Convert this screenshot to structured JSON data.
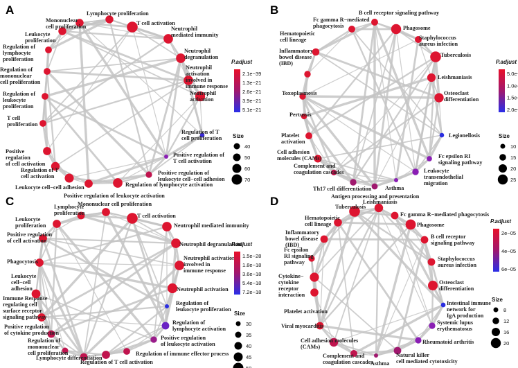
{
  "panels": [
    {
      "letter": "A",
      "legend_title": "P.adjust",
      "ticks": [
        "2.1e−39",
        "1.3e−21",
        "2.6e−21",
        "3.9e−21",
        "5.1e−21"
      ],
      "size_title": "Size",
      "size_ticks": [
        "40",
        "50",
        "60",
        "70"
      ],
      "nodes": [
        {
          "label": "Lymphocyte proliferation",
          "size": 55,
          "color": "#dd1530"
        },
        {
          "label": "T cell activation",
          "size": 68,
          "color": "#dd1530"
        },
        {
          "label": "Neutrophil mediated immunity",
          "size": 62,
          "color": "#dd1530"
        },
        {
          "label": "Neutrophil degranulation",
          "size": 62,
          "color": "#dd1530"
        },
        {
          "label": "Neutrophil activation involved in immune response",
          "size": 62,
          "color": "#dd1530"
        },
        {
          "label": "Neutrophil activation",
          "size": 64,
          "color": "#dd1530"
        },
        {
          "label": "Regulation of T cell proliferation",
          "size": 40,
          "color": "#3a2ad8"
        },
        {
          "label": "Positive regulation of T cell proliferation",
          "size": 38,
          "color": "#8a1eb4"
        },
        {
          "label": "Positive regulation of leukocyte cell−cell adhesion",
          "size": 48,
          "color": "#c0144e"
        },
        {
          "label": "Regulation of lymphocyte activation",
          "size": 62,
          "color": "#dd1530"
        },
        {
          "label": "Positive regulation of leukocyte activation",
          "size": 56,
          "color": "#dd1530"
        },
        {
          "label": "Leukocyte cell−cell adhesion",
          "size": 60,
          "color": "#dd1530"
        },
        {
          "label": "Regulation of T cell activation",
          "size": 58,
          "color": "#dd1530"
        },
        {
          "label": "Positive regulation of cell activation",
          "size": 56,
          "color": "#dd1530"
        },
        {
          "label": "T cell proliferation",
          "size": 50,
          "color": "#dd1530"
        },
        {
          "label": "Regulation of leukocyte proliferation",
          "size": 50,
          "color": "#dd1530"
        },
        {
          "label": "Regulation of mononuclear cell proliferation",
          "size": 50,
          "color": "#dd1530"
        },
        {
          "label": "Regulation of lymphocyte proliferation",
          "size": 50,
          "color": "#dd1530"
        },
        {
          "label": "Leukocyte proliferation",
          "size": 55,
          "color": "#dd1530"
        },
        {
          "label": "Mononuclear cell proliferation",
          "size": 55,
          "color": "#dd1530"
        }
      ]
    },
    {
      "letter": "B",
      "legend_title": "P.adjust",
      "ticks": [
        "5.0e−06",
        "1.0e−05",
        "1.5e−05",
        "2.0e−05"
      ],
      "size_title": "Size",
      "size_ticks": [
        "10",
        "15",
        "20",
        "25"
      ],
      "nodes": [
        {
          "label": "B cell receptor signaling pathway",
          "size": 16,
          "color": "#dd1530"
        },
        {
          "label": "Phagosome",
          "size": 24,
          "color": "#dd1530"
        },
        {
          "label": "Staphylococcus aureus infection",
          "size": 16,
          "color": "#dd1530"
        },
        {
          "label": "Tuberculosis",
          "size": 26,
          "color": "#dd1530"
        },
        {
          "label": "Leishmaniasis",
          "size": 20,
          "color": "#dd1530"
        },
        {
          "label": "Osteoclast differentiation",
          "size": 22,
          "color": "#dd1530"
        },
        {
          "label": "Legionellosis",
          "size": 10,
          "color": "#2a2ee0"
        },
        {
          "label": "Fc epsilon RI signaling pathway",
          "size": 12,
          "color": "#8a1eb4"
        },
        {
          "label": "Leukocyte transendothelial migration",
          "size": 15,
          "color": "#8a1eb4"
        },
        {
          "label": "Asthma",
          "size": 9,
          "color": "#8a1eb4"
        },
        {
          "label": "Antigen processing and presentation",
          "size": 14,
          "color": "#a0186e"
        },
        {
          "label": "Th17 cell differentiation",
          "size": 15,
          "color": "#a0186e"
        },
        {
          "label": "Complement and coagulation cascades",
          "size": 13,
          "color": "#c0144e"
        },
        {
          "label": "Cell adhesion molecules (CAMs)",
          "size": 18,
          "color": "#dd1530"
        },
        {
          "label": "Platelet activation",
          "size": 16,
          "color": "#dd1530"
        },
        {
          "label": "Pertussis",
          "size": 13,
          "color": "#dd1530"
        },
        {
          "label": "Toxoplasmosis",
          "size": 15,
          "color": "#dd1530"
        },
        {
          "label": "Inflammatory bowel disease (IBD)",
          "size": 15,
          "color": "#dd1530"
        },
        {
          "label": "Hematopoietic cell lineage",
          "size": 17,
          "color": "#dd1530"
        },
        {
          "label": "Fc gamma R−mediated phagocytosis",
          "size": 16,
          "color": "#dd1530"
        }
      ]
    },
    {
      "letter": "C",
      "legend_title": "P.adjust",
      "ticks": [
        "1.5e−28",
        "1.8e−18",
        "3.6e−18",
        "5.4e−18",
        "7.2e−18"
      ],
      "size_title": "Size",
      "size_ticks": [
        "30",
        "35",
        "40",
        "45",
        "50"
      ],
      "nodes": [
        {
          "label": "Mononuclear cell proliferation",
          "size": 40,
          "color": "#dd1530"
        },
        {
          "label": "T cell activation",
          "size": 48,
          "color": "#dd1530"
        },
        {
          "label": "Neutrophil mediated immunity",
          "size": 44,
          "color": "#dd1530"
        },
        {
          "label": "Neutrophil degranulation",
          "size": 44,
          "color": "#dd1530"
        },
        {
          "label": "Neutrophil activation involved in immune response",
          "size": 44,
          "color": "#dd1530"
        },
        {
          "label": "Neutrophil activation",
          "size": 45,
          "color": "#dd1530"
        },
        {
          "label": "Regulation of leukocyte proliferation",
          "size": 28,
          "color": "#2a2ee0"
        },
        {
          "label": "Regulation of lymphocyte activation",
          "size": 38,
          "color": "#6a22c4"
        },
        {
          "label": "Positive regulation of leukocyte activation",
          "size": 35,
          "color": "#9a1c8a"
        },
        {
          "label": "Regulation of immune effector process",
          "size": 36,
          "color": "#c0144e"
        },
        {
          "label": "Regulation of T cell activation",
          "size": 40,
          "color": "#c0144e"
        },
        {
          "label": "Lymphocyte differentiation",
          "size": 38,
          "color": "#c0144e"
        },
        {
          "label": "Regulation of mononuclear cell proliferation",
          "size": 34,
          "color": "#c0144e"
        },
        {
          "label": "Positive regulation of cytokine production",
          "size": 38,
          "color": "#c0144e"
        },
        {
          "label": "Immune Response regulating cell surface receptor signaling pathway",
          "size": 40,
          "color": "#dd1530"
        },
        {
          "label": "Leukocyte cell−cell adhesion",
          "size": 42,
          "color": "#dd1530"
        },
        {
          "label": "Phagocytosis",
          "size": 40,
          "color": "#dd1530"
        },
        {
          "label": "Positive regulation of cell activation",
          "size": 40,
          "color": "#dd1530"
        },
        {
          "label": "Leukocyte proliferation",
          "size": 40,
          "color": "#dd1530"
        },
        {
          "label": "Lymphocyte proliferation",
          "size": 38,
          "color": "#dd1530"
        }
      ]
    },
    {
      "letter": "D",
      "legend_title": "P.adjust",
      "ticks": [
        "2e−05",
        "4e−05",
        "6e−05"
      ],
      "size_title": "Size",
      "size_ticks": [
        "8",
        "12",
        "16",
        "20"
      ],
      "nodes": [
        {
          "label": "Leishmaniasis",
          "size": 14,
          "color": "#dd1530"
        },
        {
          "label": "Fc gamma R−mediated phagocytosis",
          "size": 12,
          "color": "#dd1530"
        },
        {
          "label": "Phagosome",
          "size": 17,
          "color": "#dd1530"
        },
        {
          "label": "B cell receptor signaling pathway",
          "size": 12,
          "color": "#dd1530"
        },
        {
          "label": "Staphylococcus aureus infection",
          "size": 12,
          "color": "#dd1530"
        },
        {
          "label": "Osteoclast differentiation",
          "size": 16,
          "color": "#dd1530"
        },
        {
          "label": "Intestinal immune network for IgA production",
          "size": 7,
          "color": "#2a2ee0"
        },
        {
          "label": "Systemic lupus erythematosus",
          "size": 10,
          "color": "#8a1eb4"
        },
        {
          "label": "Rheumatoid arthritis",
          "size": 10,
          "color": "#8a1eb4"
        },
        {
          "label": "Natural killer cell mediated cytotoxicity",
          "size": 12,
          "color": "#a0186e"
        },
        {
          "label": "Asthma",
          "size": 6,
          "color": "#a0186e"
        },
        {
          "label": "Complement and coagulation cascades",
          "size": 11,
          "color": "#c0144e"
        },
        {
          "label": "Cell adhesion molecules (CAMs)",
          "size": 14,
          "color": "#c0144e"
        },
        {
          "label": "Viral myocarditis",
          "size": 12,
          "color": "#dd1530"
        },
        {
          "label": "Platelet activation",
          "size": 13,
          "color": "#dd1530"
        },
        {
          "label": "Cytokine−cytokine receptor interaction",
          "size": 15,
          "color": "#dd1530"
        },
        {
          "label": "Fc epsilon RI signaling pathway",
          "size": 10,
          "color": "#dd1530"
        },
        {
          "label": "Inflammatory bowel disease (IBD)",
          "size": 12,
          "color": "#dd1530"
        },
        {
          "label": "Hematopoietic cell lineage",
          "size": 13,
          "color": "#dd1530"
        },
        {
          "label": "Tuberculosis",
          "size": 18,
          "color": "#dd1530"
        }
      ]
    }
  ]
}
